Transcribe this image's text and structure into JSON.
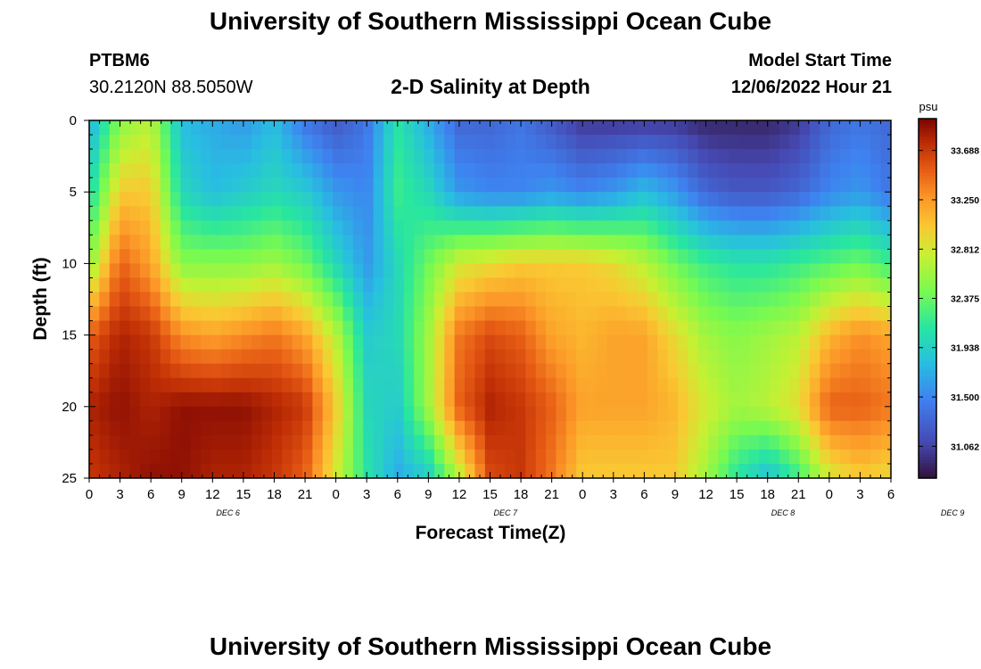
{
  "header": {
    "title": "University of Southern Mississippi Ocean Cube",
    "station": "PTBM6",
    "coords": "30.2120N  88.5050W",
    "subtitle": "2-D Salinity at Depth",
    "model_start_label": "Model Start Time",
    "model_start_value": "12/06/2022 Hour 21"
  },
  "footer": {
    "title": "University of Southern Mississippi Ocean Cube"
  },
  "chart_data": {
    "type": "heatmap",
    "title": "2-D Salinity at Depth",
    "xlabel": "Forecast Time(Z)",
    "ylabel": "Depth (ft)",
    "x_ticks": [
      "0",
      "3",
      "6",
      "9",
      "12",
      "15",
      "18",
      "21",
      "0",
      "3",
      "6",
      "9",
      "12",
      "15",
      "18",
      "21",
      "0",
      "3",
      "6",
      "9",
      "12",
      "15",
      "18",
      "21",
      "0",
      "3",
      "6"
    ],
    "day_labels": [
      {
        "label": "DEC 6",
        "tick_index": 4.5
      },
      {
        "label": "DEC 7",
        "tick_index": 13.5
      },
      {
        "label": "DEC 8",
        "tick_index": 22.5
      },
      {
        "label": "DEC 9",
        "tick_index": 28
      }
    ],
    "x_range_hours": [
      0,
      78
    ],
    "y_ticks": [
      0,
      5,
      10,
      15,
      20,
      25
    ],
    "y_range_ft": [
      0,
      25
    ],
    "colorbar": {
      "unit": "psu",
      "range": [
        30.78,
        33.97
      ],
      "tick_labels": [
        "33.688",
        "33.250",
        "32.812",
        "32.375",
        "31.938",
        "31.500",
        "31.062"
      ],
      "tick_values": [
        33.688,
        33.25,
        32.812,
        32.375,
        31.938,
        31.5,
        31.062
      ]
    },
    "grid_hours": [
      0,
      3,
      6,
      9,
      12,
      15,
      18,
      21,
      24,
      27,
      30,
      33,
      36,
      39,
      42,
      45,
      48,
      51,
      54,
      57,
      60,
      63,
      66,
      69,
      72,
      75,
      78
    ],
    "grid_depths_ft": [
      0,
      5,
      10,
      15,
      20,
      25
    ],
    "values": [
      [
        31.7,
        32.5,
        32.7,
        31.8,
        31.7,
        31.6,
        31.8,
        31.4,
        31.2,
        31.4,
        32.1,
        31.7,
        31.3,
        31.3,
        31.4,
        31.2,
        31.0,
        31.0,
        31.0,
        31.0,
        30.9,
        30.9,
        30.9,
        31.0,
        31.3,
        31.4,
        31.3
      ],
      [
        32.0,
        33.0,
        33.0,
        32.0,
        31.8,
        31.9,
        32.0,
        31.9,
        31.6,
        31.5,
        32.2,
        32.0,
        31.6,
        31.5,
        31.5,
        31.6,
        31.5,
        31.6,
        31.8,
        31.6,
        31.3,
        31.2,
        31.2,
        31.3,
        31.5,
        31.6,
        31.4
      ],
      [
        32.5,
        33.5,
        33.2,
        32.5,
        32.5,
        32.5,
        32.6,
        32.4,
        32.0,
        31.6,
        32.0,
        32.4,
        32.8,
        32.9,
        33.0,
        33.0,
        33.0,
        32.9,
        32.7,
        32.4,
        32.2,
        32.1,
        32.1,
        32.2,
        32.3,
        32.4,
        32.2
      ],
      [
        33.5,
        33.8,
        33.7,
        33.3,
        33.2,
        33.3,
        33.4,
        33.2,
        32.7,
        31.9,
        32.0,
        32.6,
        33.4,
        33.6,
        33.5,
        33.2,
        33.1,
        33.2,
        33.2,
        32.9,
        32.6,
        32.5,
        32.6,
        32.7,
        33.1,
        33.3,
        33.2
      ],
      [
        33.8,
        33.9,
        33.8,
        33.9,
        33.9,
        33.9,
        33.8,
        33.7,
        33.0,
        32.0,
        31.9,
        32.6,
        33.5,
        33.8,
        33.7,
        33.5,
        33.2,
        33.2,
        33.2,
        33.1,
        32.8,
        32.6,
        32.7,
        32.9,
        33.5,
        33.5,
        33.4
      ],
      [
        33.7,
        33.8,
        33.9,
        33.9,
        33.8,
        33.8,
        33.7,
        33.5,
        32.8,
        32.1,
        31.7,
        31.9,
        32.7,
        33.6,
        33.7,
        33.4,
        33.0,
        33.0,
        33.0,
        33.0,
        32.6,
        32.1,
        31.8,
        32.2,
        32.8,
        33.0,
        32.9
      ]
    ]
  }
}
